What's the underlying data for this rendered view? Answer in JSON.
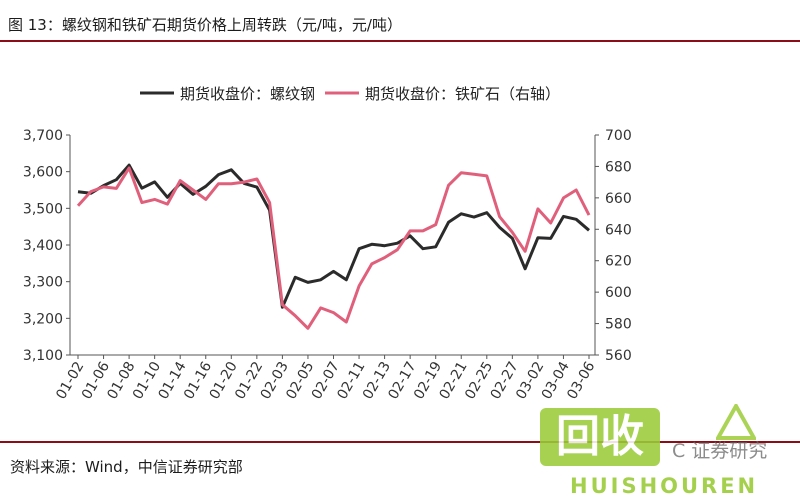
{
  "figure_title": "图 13：螺纹钢和铁矿石期货价格上周转跌（元/吨，元/吨）",
  "source_note": "资料来源：Wind，中信证券研究部",
  "watermark": {
    "logo_text": "回收",
    "brand_text": "HUISHOUREN",
    "tail_text": "C 证券研究"
  },
  "colors": {
    "rebar": "#2b2b2b",
    "iron_ore": "#e0607c",
    "rule": "#8c0d18",
    "watermark": "#9ccc3a"
  },
  "chart_data": {
    "type": "line",
    "legend_position": "top",
    "grid": false,
    "x": [
      "01-02",
      "01-03",
      "01-06",
      "01-07",
      "01-08",
      "01-09",
      "01-10",
      "01-13",
      "01-14",
      "01-15",
      "01-16",
      "01-17",
      "01-20",
      "01-21",
      "01-22",
      "01-23",
      "02-03",
      "02-04",
      "02-05",
      "02-06",
      "02-07",
      "02-10",
      "02-11",
      "02-12",
      "02-13",
      "02-14",
      "02-17",
      "02-18",
      "02-19",
      "02-20",
      "02-21",
      "02-24",
      "02-25",
      "02-26",
      "02-27",
      "02-28",
      "03-02",
      "03-03",
      "03-04",
      "03-05",
      "03-06"
    ],
    "x_tick_labels": [
      "01-02",
      "01-06",
      "01-08",
      "01-10",
      "01-14",
      "01-16",
      "01-20",
      "01-22",
      "02-03",
      "02-05",
      "02-07",
      "02-11",
      "02-13",
      "02-17",
      "02-19",
      "02-21",
      "02-25",
      "02-27",
      "03-02",
      "03-04",
      "03-06"
    ],
    "y_left": {
      "lim": [
        3100,
        3700
      ],
      "ticks": [
        "3,100",
        "3,200",
        "3,300",
        "3,400",
        "3,500",
        "3,600",
        "3,700"
      ]
    },
    "y_right": {
      "lim": [
        560,
        700
      ],
      "ticks": [
        "560",
        "580",
        "600",
        "620",
        "640",
        "660",
        "680",
        "700"
      ]
    },
    "series": [
      {
        "name": "期货收盘价：螺纹钢",
        "axis": "left",
        "values": [
          3545,
          3541,
          3562,
          3578,
          3618,
          3555,
          3572,
          3530,
          3568,
          3538,
          3560,
          3592,
          3605,
          3568,
          3558,
          3495,
          3230,
          3312,
          3298,
          3305,
          3328,
          3305,
          3390,
          3402,
          3398,
          3405,
          3425,
          3390,
          3395,
          3462,
          3485,
          3476,
          3488,
          3448,
          3418,
          3335,
          3420,
          3418,
          3478,
          3470,
          3440
        ]
      },
      {
        "name": "期货收盘价：铁矿石（右轴）",
        "axis": "right",
        "values": [
          655,
          664,
          667,
          666,
          679,
          657,
          659,
          656,
          671,
          665,
          659,
          669,
          669,
          670,
          672,
          657,
          592,
          585,
          577,
          590,
          587,
          581,
          604,
          618,
          622,
          627,
          639,
          639,
          643,
          668,
          676,
          675,
          674,
          648,
          638,
          626,
          653,
          644,
          660,
          665,
          649
        ]
      }
    ]
  }
}
